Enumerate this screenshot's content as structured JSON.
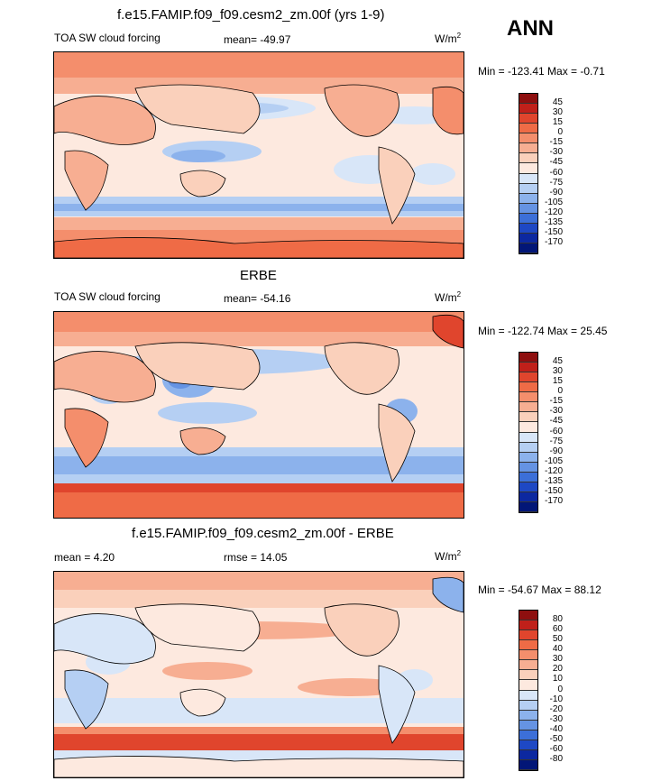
{
  "season": "ANN",
  "panels": [
    {
      "title": "f.e15.FAMIP.f09_f09.cesm2_zm.00f (yrs 1-9)",
      "left_label": "TOA SW cloud forcing",
      "center_label": "mean= -49.97",
      "units_base": "W/m",
      "units_exp": "2",
      "minmax": "Min = -123.41 Max =  -0.71",
      "colorbar_labels": [
        "45",
        "30",
        "15",
        "0",
        "-15",
        "-30",
        "-45",
        "-60",
        "-75",
        "-90",
        "-105",
        "-120",
        "-135",
        "-150",
        "-170"
      ],
      "colorbar_colors": [
        "#8e0f0f",
        "#c0201a",
        "#e0452d",
        "#ef6b46",
        "#f48e6c",
        "#f7ae92",
        "#fad0bb",
        "#fde9df",
        "#d8e6f8",
        "#b5cff3",
        "#8cb2ec",
        "#6593e3",
        "#3c6fd8",
        "#1e48c4",
        "#0c28a0",
        "#021677"
      ]
    },
    {
      "title": "ERBE",
      "left_label": "TOA SW cloud forcing",
      "center_label": "mean= -54.16",
      "units_base": "W/m",
      "units_exp": "2",
      "minmax": "Min = -122.74 Max =  25.45",
      "colorbar_labels": [
        "45",
        "30",
        "15",
        "0",
        "-15",
        "-30",
        "-45",
        "-60",
        "-75",
        "-90",
        "-105",
        "-120",
        "-135",
        "-150",
        "-170"
      ],
      "colorbar_colors": [
        "#8e0f0f",
        "#c0201a",
        "#e0452d",
        "#ef6b46",
        "#f48e6c",
        "#f7ae92",
        "#fad0bb",
        "#fde9df",
        "#d8e6f8",
        "#b5cff3",
        "#8cb2ec",
        "#6593e3",
        "#3c6fd8",
        "#1e48c4",
        "#0c28a0",
        "#021677"
      ]
    },
    {
      "title": "f.e15.FAMIP.f09_f09.cesm2_zm.00f - ERBE",
      "left_label": "mean =   4.20",
      "center_label": "rmse =  14.05",
      "units_base": "W/m",
      "units_exp": "2",
      "minmax": "Min = -54.67 Max =  88.12",
      "colorbar_labels": [
        "80",
        "60",
        "50",
        "40",
        "30",
        "20",
        "10",
        "0",
        "-10",
        "-20",
        "-30",
        "-40",
        "-50",
        "-60",
        "-80"
      ],
      "colorbar_colors": [
        "#8e0f0f",
        "#c0201a",
        "#e0452d",
        "#ef6b46",
        "#f48e6c",
        "#f7ae92",
        "#fad0bb",
        "#fde9df",
        "#d8e6f8",
        "#b5cff3",
        "#8cb2ec",
        "#6593e3",
        "#3c6fd8",
        "#1e48c4",
        "#0c28a0",
        "#021677"
      ]
    }
  ],
  "chart_data": [
    {
      "type": "heatmap",
      "title": "f.e15.FAMIP.f09_f09.cesm2_zm.00f (yrs 1-9)",
      "variable": "TOA SW cloud forcing",
      "units": "W/m2",
      "mean": -49.97,
      "min": -123.41,
      "max": -0.71,
      "contour_levels": [
        45,
        30,
        15,
        0,
        -15,
        -30,
        -45,
        -60,
        -75,
        -90,
        -105,
        -120,
        -135,
        -150,
        -170
      ]
    },
    {
      "type": "heatmap",
      "title": "ERBE",
      "variable": "TOA SW cloud forcing",
      "units": "W/m2",
      "mean": -54.16,
      "min": -122.74,
      "max": 25.45,
      "contour_levels": [
        45,
        30,
        15,
        0,
        -15,
        -30,
        -45,
        -60,
        -75,
        -90,
        -105,
        -120,
        -135,
        -150,
        -170
      ]
    },
    {
      "type": "heatmap",
      "title": "f.e15.FAMIP.f09_f09.cesm2_zm.00f - ERBE",
      "units": "W/m2",
      "mean": 4.2,
      "rmse": 14.05,
      "min": -54.67,
      "max": 88.12,
      "contour_levels": [
        80,
        60,
        50,
        40,
        30,
        20,
        10,
        0,
        -10,
        -20,
        -30,
        -40,
        -50,
        -60,
        -80
      ]
    }
  ]
}
